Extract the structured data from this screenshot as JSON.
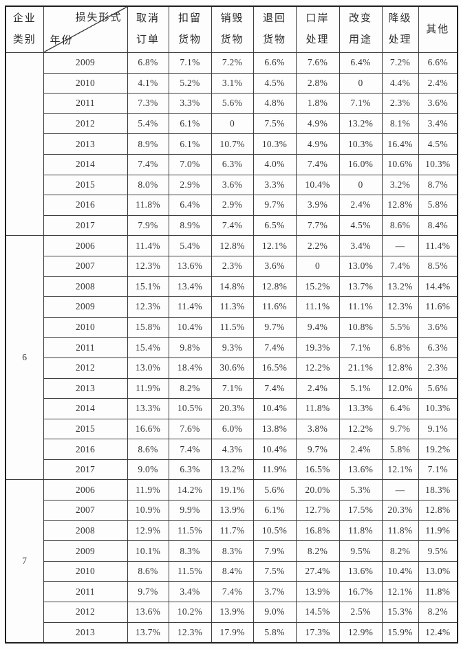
{
  "table": {
    "corner": {
      "left_header_line1": "企业",
      "left_header_line2": "类别",
      "diagonal_top_label": "损失形式",
      "diagonal_bottom_label": "年份"
    },
    "columns": [
      [
        "取消",
        "订单"
      ],
      [
        "扣留",
        "货物"
      ],
      [
        "销毁",
        "货物"
      ],
      [
        "退回",
        "货物"
      ],
      [
        "口岸",
        "处理"
      ],
      [
        "改变",
        "用途"
      ],
      [
        "降级",
        "处理"
      ],
      [
        "其他"
      ]
    ],
    "sections": [
      {
        "category": "",
        "rows": [
          {
            "year": "2009",
            "values": [
              "6.8%",
              "7.1%",
              "7.2%",
              "6.6%",
              "7.6%",
              "6.4%",
              "7.2%",
              "6.6%"
            ]
          },
          {
            "year": "2010",
            "values": [
              "4.1%",
              "5.2%",
              "3.1%",
              "4.5%",
              "2.8%",
              "0",
              "4.4%",
              "2.4%"
            ]
          },
          {
            "year": "2011",
            "values": [
              "7.3%",
              "3.3%",
              "5.6%",
              "4.8%",
              "1.8%",
              "7.1%",
              "2.3%",
              "3.6%"
            ]
          },
          {
            "year": "2012",
            "values": [
              "5.4%",
              "6.1%",
              "0",
              "7.5%",
              "4.9%",
              "13.2%",
              "8.1%",
              "3.4%"
            ]
          },
          {
            "year": "2013",
            "values": [
              "8.9%",
              "6.1%",
              "10.7%",
              "10.3%",
              "4.9%",
              "10.3%",
              "16.4%",
              "4.5%"
            ]
          },
          {
            "year": "2014",
            "values": [
              "7.4%",
              "7.0%",
              "6.3%",
              "4.0%",
              "7.4%",
              "16.0%",
              "10.6%",
              "10.3%"
            ]
          },
          {
            "year": "2015",
            "values": [
              "8.0%",
              "2.9%",
              "3.6%",
              "3.3%",
              "10.4%",
              "0",
              "3.2%",
              "8.7%"
            ]
          },
          {
            "year": "2016",
            "values": [
              "11.8%",
              "6.4%",
              "2.9%",
              "9.7%",
              "3.9%",
              "2.4%",
              "12.8%",
              "5.8%"
            ]
          },
          {
            "year": "2017",
            "values": [
              "7.9%",
              "8.9%",
              "7.4%",
              "6.5%",
              "7.7%",
              "4.5%",
              "8.6%",
              "8.4%"
            ]
          }
        ]
      },
      {
        "category": "6",
        "rows": [
          {
            "year": "2006",
            "values": [
              "11.4%",
              "5.4%",
              "12.8%",
              "12.1%",
              "2.2%",
              "3.4%",
              "—",
              "11.4%"
            ]
          },
          {
            "year": "2007",
            "values": [
              "12.3%",
              "13.6%",
              "2.3%",
              "3.6%",
              "0",
              "13.0%",
              "7.4%",
              "8.5%"
            ]
          },
          {
            "year": "2008",
            "values": [
              "15.1%",
              "13.4%",
              "14.8%",
              "12.8%",
              "15.2%",
              "13.7%",
              "13.2%",
              "14.4%"
            ]
          },
          {
            "year": "2009",
            "values": [
              "12.3%",
              "11.4%",
              "11.3%",
              "11.6%",
              "11.1%",
              "11.1%",
              "12.3%",
              "11.6%"
            ]
          },
          {
            "year": "2010",
            "values": [
              "15.8%",
              "10.4%",
              "11.5%",
              "9.7%",
              "9.4%",
              "10.8%",
              "5.5%",
              "3.6%"
            ]
          },
          {
            "year": "2011",
            "values": [
              "15.4%",
              "9.8%",
              "9.3%",
              "7.4%",
              "19.3%",
              "7.1%",
              "6.8%",
              "6.3%"
            ]
          },
          {
            "year": "2012",
            "values": [
              "13.0%",
              "18.4%",
              "30.6%",
              "16.5%",
              "12.2%",
              "21.1%",
              "12.8%",
              "2.3%"
            ]
          },
          {
            "year": "2013",
            "values": [
              "11.9%",
              "8.2%",
              "7.1%",
              "7.4%",
              "2.4%",
              "5.1%",
              "12.0%",
              "5.6%"
            ]
          },
          {
            "year": "2014",
            "values": [
              "13.3%",
              "10.5%",
              "20.3%",
              "10.4%",
              "11.8%",
              "13.3%",
              "6.4%",
              "10.3%"
            ]
          },
          {
            "year": "2015",
            "values": [
              "16.6%",
              "7.6%",
              "6.0%",
              "13.8%",
              "3.8%",
              "12.2%",
              "9.7%",
              "9.1%"
            ]
          },
          {
            "year": "2016",
            "values": [
              "8.6%",
              "7.4%",
              "4.3%",
              "10.4%",
              "9.7%",
              "2.4%",
              "5.8%",
              "19.2%"
            ]
          },
          {
            "year": "2017",
            "values": [
              "9.0%",
              "6.3%",
              "13.2%",
              "11.9%",
              "16.5%",
              "13.6%",
              "12.1%",
              "7.1%"
            ]
          }
        ]
      },
      {
        "category": "7",
        "rows": [
          {
            "year": "2006",
            "values": [
              "11.9%",
              "14.2%",
              "19.1%",
              "5.6%",
              "20.0%",
              "5.3%",
              "—",
              "18.3%"
            ]
          },
          {
            "year": "2007",
            "values": [
              "10.9%",
              "9.9%",
              "13.9%",
              "6.1%",
              "12.7%",
              "17.5%",
              "20.3%",
              "12.8%"
            ]
          },
          {
            "year": "2008",
            "values": [
              "12.9%",
              "11.5%",
              "11.7%",
              "10.5%",
              "16.8%",
              "11.8%",
              "11.8%",
              "11.9%"
            ]
          },
          {
            "year": "2009",
            "values": [
              "10.1%",
              "8.3%",
              "8.3%",
              "7.9%",
              "8.2%",
              "9.5%",
              "8.2%",
              "9.5%"
            ]
          },
          {
            "year": "2010",
            "values": [
              "8.6%",
              "11.5%",
              "8.4%",
              "7.5%",
              "27.4%",
              "13.6%",
              "10.4%",
              "13.0%"
            ]
          },
          {
            "year": "2011",
            "values": [
              "9.7%",
              "3.4%",
              "7.4%",
              "3.7%",
              "13.9%",
              "16.7%",
              "12.1%",
              "11.8%"
            ]
          },
          {
            "year": "2012",
            "values": [
              "13.6%",
              "10.2%",
              "13.9%",
              "9.0%",
              "14.5%",
              "2.5%",
              "15.3%",
              "8.2%"
            ]
          },
          {
            "year": "2013",
            "values": [
              "13.7%",
              "12.3%",
              "17.9%",
              "5.8%",
              "17.3%",
              "12.9%",
              "15.9%",
              "12.4%"
            ]
          }
        ]
      }
    ]
  },
  "colors": {
    "text": "#2b2b2b",
    "border": "#3d3d3d",
    "outer_border": "#1f1f1f",
    "light_rule": "#bcbcbc",
    "background": "#fdfdfd"
  }
}
